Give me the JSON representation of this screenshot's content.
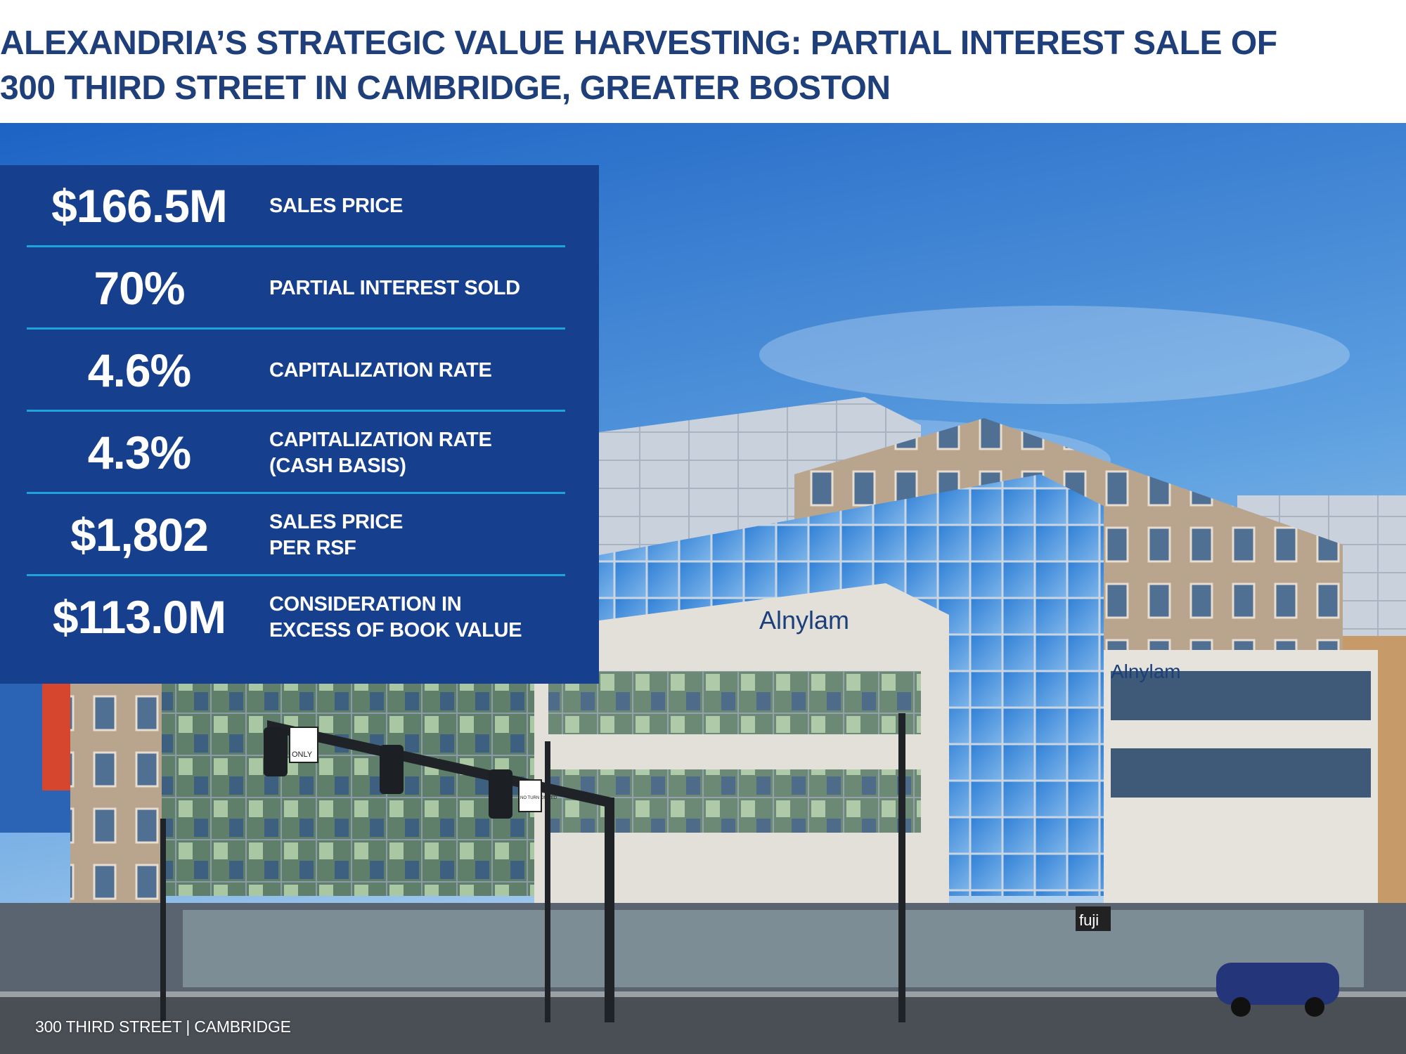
{
  "title": {
    "line1": "ALEXANDRIA’S STRATEGIC VALUE HARVESTING: PARTIAL INTEREST SALE OF",
    "line2": "300 THIRD STREET IN CAMBRIDGE, GREATER BOSTON"
  },
  "stats": [
    {
      "value": "$166.5M",
      "label1": "SALES PRICE",
      "label2": ""
    },
    {
      "value": "70%",
      "label1": "PARTIAL INTEREST SOLD",
      "label2": ""
    },
    {
      "value": "4.6%",
      "label1": "CAPITALIZATION RATE",
      "label2": ""
    },
    {
      "value": "4.3%",
      "label1": "CAPITALIZATION RATE",
      "label2": "(CASH BASIS)"
    },
    {
      "value": "$1,802",
      "label1": "SALES PRICE",
      "label2": "PER RSF"
    },
    {
      "value": "$113.0M",
      "label1": "CONSIDERATION IN",
      "label2": "EXCESS OF BOOK VALUE"
    }
  ],
  "photo": {
    "signs": {
      "tenant": "Alnylam",
      "tenant_side": "Alnylam",
      "store": "fuji",
      "turn_sign": "ONLY",
      "no_turn": "NO TURN ON RED"
    }
  },
  "caption": "300 THIRD STREET | CAMBRIDGE",
  "colors": {
    "title": "#1f3f7a",
    "panel": "#163f8d",
    "divider": "#1fa3dc"
  }
}
